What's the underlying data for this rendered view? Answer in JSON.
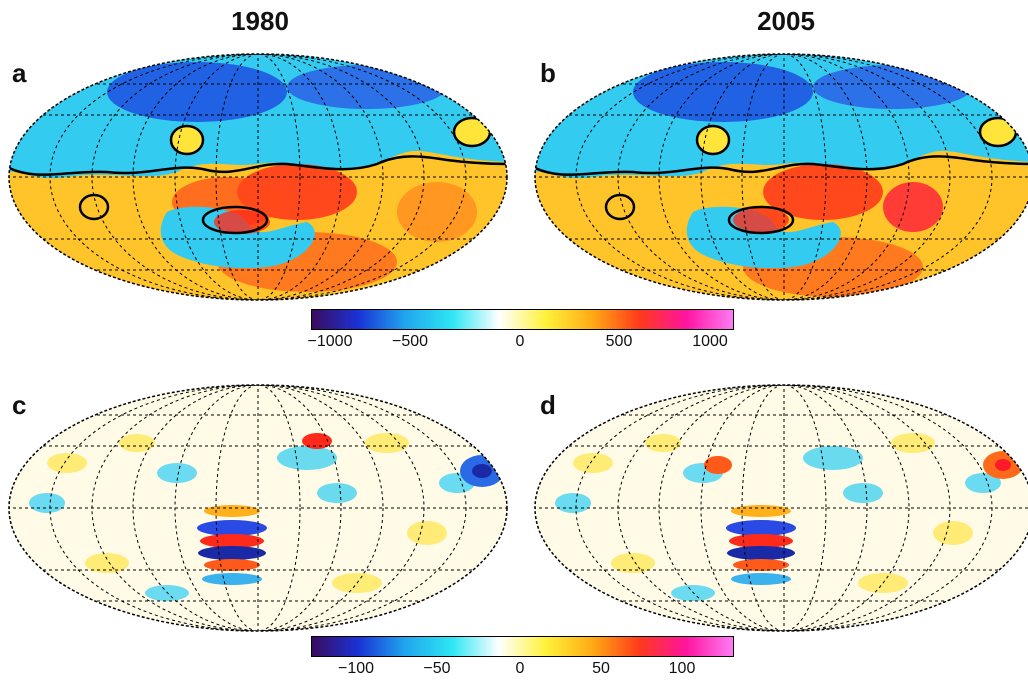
{
  "titles": {
    "left": "1980",
    "right": "2005"
  },
  "panels": {
    "a": {
      "label": "a"
    },
    "b": {
      "label": "b"
    },
    "c": {
      "label": "c"
    },
    "d": {
      "label": "d"
    }
  },
  "colorbars": {
    "top": {
      "ticks": [
        "−1000",
        "−500",
        "0",
        "500",
        "1000"
      ],
      "range": [
        -1000,
        1000
      ]
    },
    "bottom": {
      "ticks": [
        "−100",
        "−50",
        "0",
        "50",
        "100"
      ],
      "range": [
        -130,
        130
      ]
    }
  },
  "colormap": [
    "#3a0c5e",
    "#1a33d6",
    "#20a6ee",
    "#2ee6f2",
    "#ffffff",
    "#fff23a",
    "#ffaa14",
    "#ff3a1a",
    "#ff14a0",
    "#ff7cf4"
  ]
}
